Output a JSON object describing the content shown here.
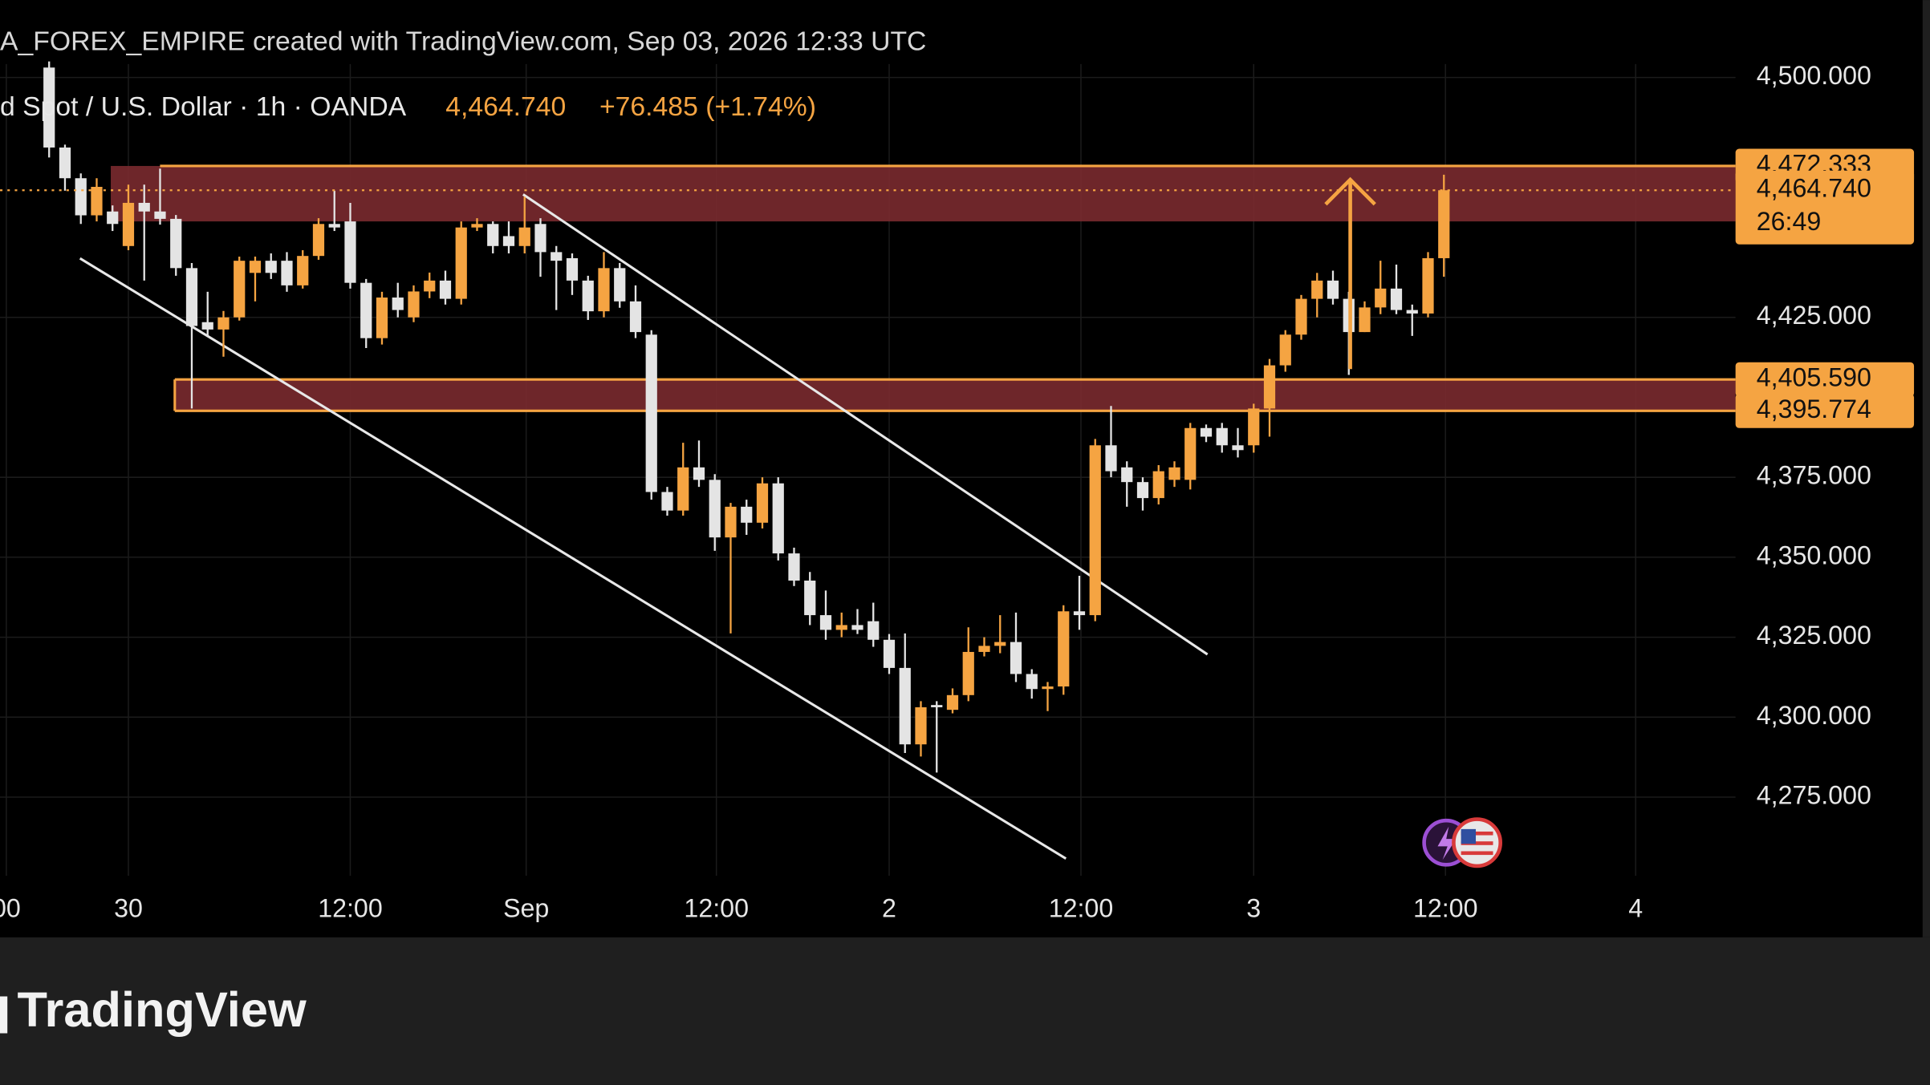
{
  "chart_data": {
    "type": "candlestick",
    "header": "A_FOREX_EMPIRE created with TradingView.com, Sep 03, 2026 12:33 UTC",
    "symbol": "d Spot / U.S. Dollar · 1h · OANDA",
    "last_price": "4,464.740",
    "change": "+76.485 (+1.74%)",
    "up_color": "#f5a442",
    "down_color": "#e4e4e4",
    "zone_color": "#7a2a2f",
    "grid": true,
    "x": [
      0,
      1,
      2,
      3,
      4,
      5,
      6,
      7,
      8,
      9,
      10,
      11,
      12,
      13,
      14,
      15,
      16,
      17,
      18,
      19,
      20,
      21,
      22,
      23,
      24,
      25,
      26,
      27,
      28,
      29,
      30,
      31,
      32,
      33,
      34,
      35,
      36,
      37,
      38,
      39,
      40,
      41,
      42,
      43,
      44,
      45,
      46,
      47,
      48,
      49,
      50,
      51,
      52,
      53,
      54,
      55,
      56,
      57,
      58,
      59,
      60,
      61,
      62,
      63,
      64,
      65,
      66,
      67,
      68,
      69,
      70,
      71,
      72,
      73,
      74,
      75,
      76,
      77,
      78,
      79,
      80,
      81,
      82,
      83,
      84,
      85,
      86,
      87,
      88
    ],
    "open": [
      4503.1,
      4478.1,
      4468.5,
      4456.9,
      4458.1,
      4447.3,
      4460.8,
      4458.1,
      4455.8,
      4440.4,
      4423.5,
      4421.2,
      4425,
      4438.9,
      4442.7,
      4442.7,
      4435,
      4444.2,
      4454.2,
      4455,
      4435.8,
      4418.5,
      4431.2,
      4425,
      4433.1,
      4436.5,
      4430.8,
      4453.1,
      4454.2,
      4450.4,
      4447.3,
      4454.2,
      4445.4,
      4443.5,
      4436.5,
      4426.9,
      4440.4,
      4430,
      4419.6,
      4370.4,
      4364.6,
      4378.1,
      4374.2,
      4356.2,
      4365.8,
      4360.8,
      4373.1,
      4351.2,
      4342.7,
      4331.9,
      4327.3,
      4328.8,
      4330,
      4324.2,
      4315.4,
      4291.5,
      4303.8,
      4302.3,
      4306.9,
      4320.4,
      4322.3,
      4323.5,
      4313.5,
      4308.8,
      4309.6,
      4333.1,
      4331.9,
      4385,
      4378.1,
      4373.5,
      4368.5,
      4374.2,
      4374.2,
      4390.4,
      4390.4,
      4385,
      4385,
      4396.5,
      4410,
      4419.6,
      4430.8,
      4436.5,
      4430.8,
      4420.4,
      4428.1,
      4434,
      4427.3,
      4426.2,
      4443.5
    ],
    "high": [
      4505,
      4479,
      4470,
      4468.5,
      4460,
      4466.5,
      4466.5,
      4471.5,
      4457,
      4442,
      4433,
      4427,
      4444,
      4444,
      4445,
      4445.4,
      4446,
      4456,
      4464.6,
      4460.8,
      4437,
      4433,
      4435.8,
      4435,
      4439,
      4439.6,
      4455,
      4456,
      4455,
      4455,
      4462.7,
      4456,
      4447.3,
      4445,
      4438,
      4445.4,
      4442,
      4435,
      4421,
      4372,
      4385.8,
      4386.5,
      4376,
      4367,
      4368,
      4375,
      4375,
      4353,
      4345.4,
      4339.6,
      4332.7,
      4333.8,
      4335.8,
      4326,
      4326.2,
      4305,
      4305,
      4309,
      4328.1,
      4325,
      4331.9,
      4332.7,
      4315,
      4311,
      4335,
      4344.2,
      4387,
      4397.3,
      4380,
      4375,
      4378.8,
      4380,
      4392,
      4391.5,
      4392,
      4390.4,
      4398,
      4412,
      4421,
      4432,
      4438.9,
      4439.6,
      4433,
      4430,
      4442.7,
      4441.5,
      4429,
      4445.4,
      4469.6
    ],
    "low": [
      4475,
      4464.6,
      4454.2,
      4455,
      4452,
      4446,
      4436.5,
      4454,
      4438,
      4396.5,
      4419,
      4412.7,
      4424,
      4430,
      4437,
      4433,
      4434,
      4443,
      4452,
      4434,
      4415.4,
      4416.5,
      4425,
      4423.5,
      4431,
      4429,
      4429,
      4452,
      4445,
      4445,
      4445,
      4437.7,
      4427.3,
      4432,
      4424.2,
      4425,
      4428,
      4418.5,
      4368,
      4363,
      4363,
      4372,
      4352,
      4326.2,
      4357,
      4359,
      4349,
      4341,
      4328.8,
      4324.2,
      4325,
      4326,
      4322,
      4313.5,
      4288.8,
      4287.7,
      4282.7,
      4301.2,
      4305,
      4319,
      4320,
      4311,
      4305.8,
      4301.9,
      4307,
      4327.3,
      4330,
      4375,
      4365.8,
      4364.6,
      4366.5,
      4372,
      4371.2,
      4386,
      4382.7,
      4381.2,
      4382.7,
      4387.7,
      4408,
      4418,
      4425,
      4429,
      4407,
      4420.4,
      4426,
      4426,
      4419.2,
      4425,
      4437.7
    ],
    "close": [
      4478.1,
      4468.5,
      4456.9,
      4465.8,
      4454.2,
      4460.8,
      4458.1,
      4455.8,
      4440.4,
      4422.3,
      4421.2,
      4425,
      4442.7,
      4442.7,
      4438.9,
      4435,
      4444.2,
      4454.2,
      4453.1,
      4435.8,
      4418.5,
      4431.2,
      4427.3,
      4433.1,
      4436.5,
      4430.8,
      4453.1,
      4454.2,
      4447.3,
      4447.3,
      4453.1,
      4445.4,
      4442.7,
      4436.5,
      4426.9,
      4440.4,
      4430,
      4420.4,
      4370.4,
      4364.6,
      4378.1,
      4374.2,
      4356.2,
      4365.8,
      4360.8,
      4373.1,
      4351.2,
      4342.7,
      4331.9,
      4327.3,
      4328.8,
      4327.3,
      4324.2,
      4315.4,
      4291.5,
      4303.1,
      4303.1,
      4306.9,
      4320.4,
      4322.3,
      4323.5,
      4313.5,
      4308.8,
      4309.6,
      4333.1,
      4331.9,
      4385,
      4376.9,
      4373.5,
      4368.5,
      4376.9,
      4378.1,
      4390.4,
      4387.7,
      4385,
      4383.5,
      4396.5,
      4410,
      4419.6,
      4430.8,
      4436.5,
      4430.8,
      4420.4,
      4428.1,
      4434,
      4427.3,
      4426.2,
      4443.5,
      4464.74
    ],
    "xlim": [
      -3.1,
      106.4
    ],
    "xticks": [
      {
        "value": -2.7,
        "label": "00"
      },
      {
        "value": 5,
        "label": "30"
      },
      {
        "value": 19,
        "label": "12:00"
      },
      {
        "value": 30.1,
        "label": "Sep"
      },
      {
        "value": 42.1,
        "label": "12:00"
      },
      {
        "value": 53,
        "label": "2"
      },
      {
        "value": 65.1,
        "label": "12:00"
      },
      {
        "value": 76,
        "label": "3"
      },
      {
        "value": 88.1,
        "label": "12:00"
      },
      {
        "value": 100.1,
        "label": "4"
      }
    ],
    "ylim": [
      4250.4,
      4504.2
    ],
    "yticks": [
      {
        "value": 4500,
        "label": "4,500.000"
      },
      {
        "value": 4425,
        "label": "4,425.000"
      },
      {
        "value": 4375,
        "label": "4,375.000"
      },
      {
        "value": 4350,
        "label": "4,350.000"
      },
      {
        "value": 4325,
        "label": "4,325.000"
      },
      {
        "value": 4300,
        "label": "4,300.000"
      },
      {
        "value": 4275,
        "label": "4,275.000"
      }
    ],
    "zones": [
      {
        "top": {
          "value": 4472.333,
          "label": "4,472.333"
        },
        "bottom": 4455
      },
      {
        "top": {
          "value": 4405.59,
          "label": "4,405.590"
        },
        "bottom": {
          "value": 4395.774,
          "label": "4,395.774"
        }
      }
    ],
    "current_price": {
      "value": 4464.74,
      "label": "4,464.740",
      "countdown": "26:49"
    },
    "footer": "TradingView"
  }
}
